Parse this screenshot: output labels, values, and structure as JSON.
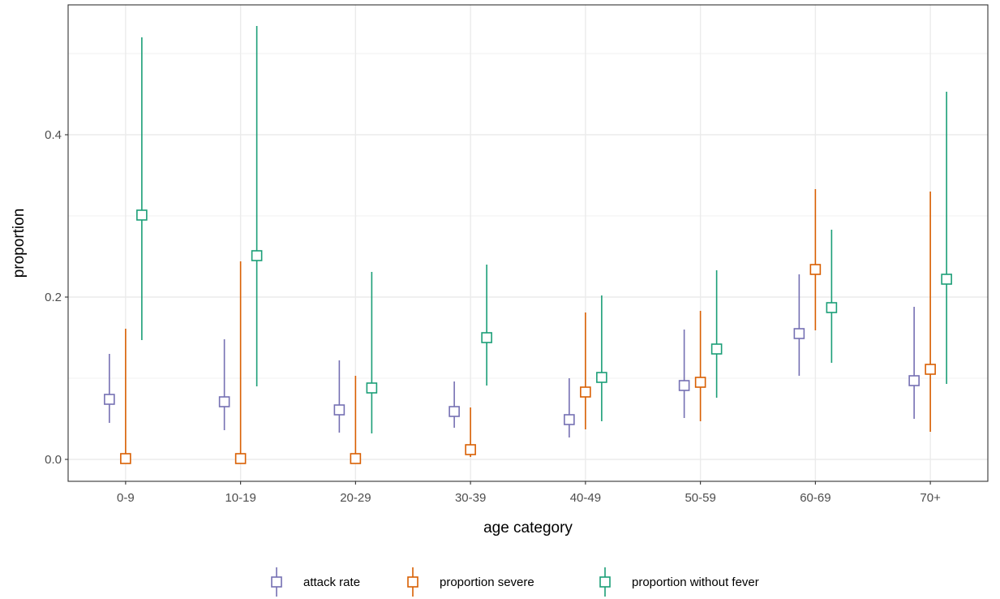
{
  "chart_data": {
    "type": "scatter",
    "subtype": "point-range",
    "title": "",
    "xlabel": "age category",
    "ylabel": "proportion",
    "categories": [
      "0-9",
      "10-19",
      "20-29",
      "30-39",
      "40-49",
      "50-59",
      "60-69",
      "70+"
    ],
    "ylim": [
      -0.027,
      0.56
    ],
    "yticks": [
      0.0,
      0.2,
      0.4
    ],
    "ytick_labels": [
      "0.0",
      "0.2",
      "0.4"
    ],
    "grid": true,
    "legend_position": "bottom",
    "series": [
      {
        "name": "attack rate",
        "color": "#7570b3",
        "values": [
          0.074,
          0.071,
          0.061,
          0.059,
          0.049,
          0.091,
          0.155,
          0.097
        ],
        "lower": [
          0.045,
          0.036,
          0.033,
          0.039,
          0.027,
          0.051,
          0.103,
          0.05
        ],
        "upper": [
          0.13,
          0.148,
          0.122,
          0.096,
          0.1,
          0.16,
          0.228,
          0.188
        ]
      },
      {
        "name": "proportion severe",
        "color": "#d95f02",
        "values": [
          0.001,
          0.001,
          0.001,
          0.012,
          0.083,
          0.095,
          0.234,
          0.111
        ],
        "lower": [
          0.0,
          0.0,
          0.0,
          0.003,
          0.037,
          0.047,
          0.159,
          0.034
        ],
        "upper": [
          0.161,
          0.244,
          0.103,
          0.064,
          0.181,
          0.183,
          0.333,
          0.33
        ]
      },
      {
        "name": "proportion without fever",
        "color": "#1b9e77",
        "values": [
          0.301,
          0.251,
          0.088,
          0.15,
          0.101,
          0.136,
          0.187,
          0.222
        ],
        "lower": [
          0.147,
          0.09,
          0.032,
          0.091,
          0.047,
          0.076,
          0.119,
          0.093
        ],
        "upper": [
          0.52,
          0.534,
          0.231,
          0.24,
          0.202,
          0.233,
          0.283,
          0.453
        ]
      }
    ]
  }
}
